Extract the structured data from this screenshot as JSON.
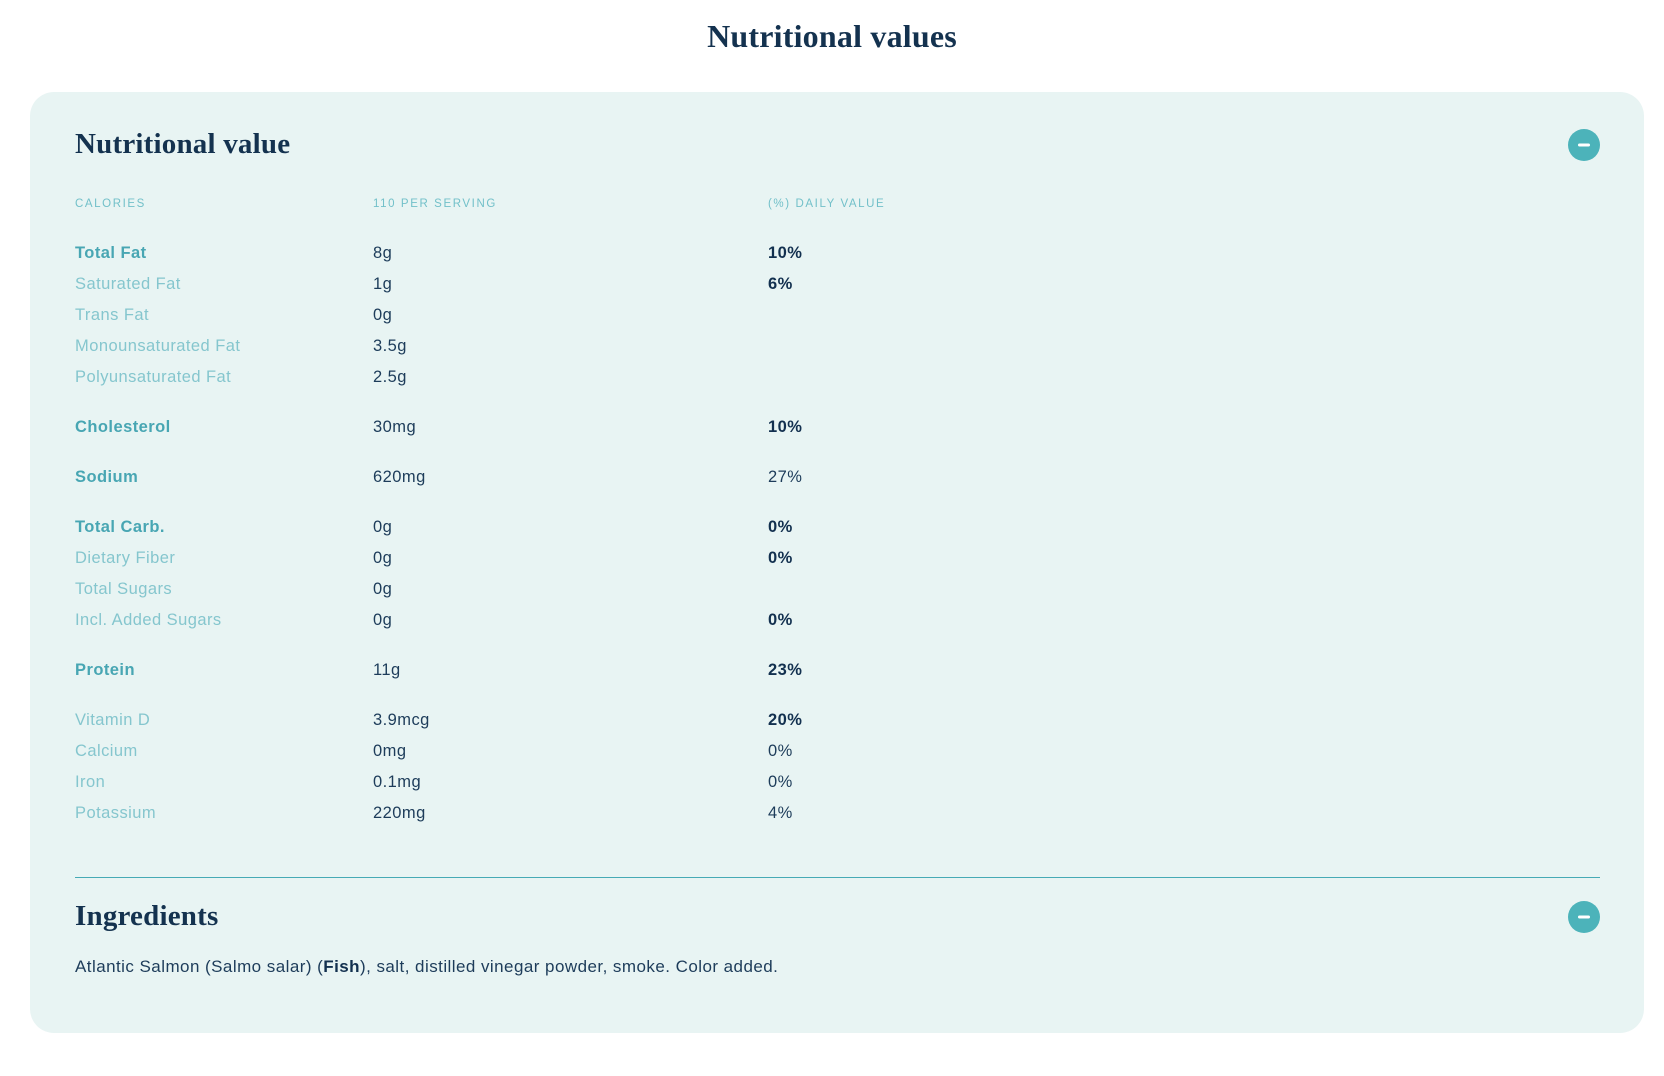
{
  "page": {
    "title": "Nutritional values"
  },
  "colors": {
    "card_background": "#e8f4f3",
    "accent_teal": "#4cb3ba",
    "column_header_teal": "#72c0c9",
    "label_main_teal": "#48a6b3",
    "label_sub_teal": "#85c6ce",
    "text_navy": "#1d3c5a",
    "text_navy_bold": "#12304f",
    "divider_teal": "#46aab5"
  },
  "icons": {
    "collapse": "minus-icon"
  },
  "nutrition": {
    "heading": "Nutritional value",
    "columns": {
      "label": "CALORIES",
      "amount": "110 PER SERVING",
      "daily": "(%) DAILY VALUE"
    },
    "groups": [
      {
        "rows": [
          {
            "label": "Total Fat",
            "style": "main",
            "amount": "8g",
            "daily": "10%",
            "daily_bold": true
          },
          {
            "label": "Saturated Fat",
            "style": "sub",
            "amount": "1g",
            "daily": "6%",
            "daily_bold": true
          },
          {
            "label": "Trans Fat",
            "style": "sub",
            "amount": "0g",
            "daily": "",
            "daily_bold": false
          },
          {
            "label": "Monounsaturated Fat",
            "style": "sub",
            "amount": "3.5g",
            "daily": "",
            "daily_bold": false
          },
          {
            "label": "Polyunsaturated Fat",
            "style": "sub",
            "amount": "2.5g",
            "daily": "",
            "daily_bold": false
          }
        ]
      },
      {
        "rows": [
          {
            "label": "Cholesterol",
            "style": "main",
            "amount": "30mg",
            "daily": "10%",
            "daily_bold": true
          }
        ]
      },
      {
        "rows": [
          {
            "label": "Sodium",
            "style": "main",
            "amount": "620mg",
            "daily": "27%",
            "daily_bold": false
          }
        ]
      },
      {
        "rows": [
          {
            "label": "Total Carb.",
            "style": "main",
            "amount": "0g",
            "daily": "0%",
            "daily_bold": true
          },
          {
            "label": "Dietary Fiber",
            "style": "sub",
            "amount": "0g",
            "daily": "0%",
            "daily_bold": true
          },
          {
            "label": "Total Sugars",
            "style": "sub",
            "amount": "0g",
            "daily": "",
            "daily_bold": false
          },
          {
            "label": "Incl. Added Sugars",
            "style": "sub",
            "amount": "0g",
            "daily": "0%",
            "daily_bold": true
          }
        ]
      },
      {
        "rows": [
          {
            "label": "Protein",
            "style": "main",
            "amount": "11g",
            "daily": "23%",
            "daily_bold": true
          }
        ]
      },
      {
        "rows": [
          {
            "label": "Vitamin D",
            "style": "sub",
            "amount": "3.9mcg",
            "daily": "20%",
            "daily_bold": true
          },
          {
            "label": "Calcium",
            "style": "sub",
            "amount": "0mg",
            "daily": "0%",
            "daily_bold": false
          },
          {
            "label": "Iron",
            "style": "sub",
            "amount": "0.1mg",
            "daily": "0%",
            "daily_bold": false
          },
          {
            "label": "Potassium",
            "style": "sub",
            "amount": "220mg",
            "daily": "4%",
            "daily_bold": false
          }
        ]
      }
    ]
  },
  "ingredients": {
    "heading": "Ingredients",
    "text_before_bold": "Atlantic Salmon (Salmo salar) (",
    "bold_text": "Fish",
    "text_after_bold": "), salt, distilled vinegar powder, smoke. Color added."
  }
}
